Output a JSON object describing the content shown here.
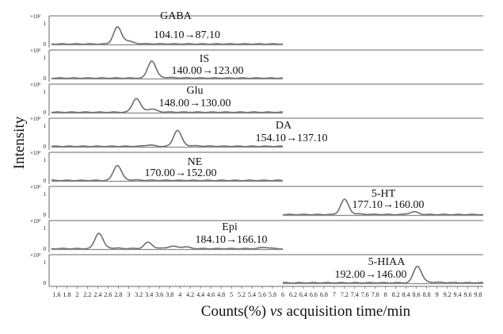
{
  "chart_data": {
    "type": "line",
    "ylabel": "Intensity",
    "xlabel_prefix": "Counts(%) ",
    "xlabel_italic": "vs",
    "xlabel_suffix": " acquisition time/min",
    "y_multiplier": "×10²",
    "y_tick_top": "1",
    "y_tick_bottom": "0",
    "xlim": [
      1.5,
      9.9
    ],
    "x_ticks": [
      "1.6",
      "1.8",
      "2",
      "2.2",
      "2.4",
      "2.6",
      "2.8",
      "3",
      "3.2",
      "3.4",
      "3.6",
      "3.8",
      "4",
      "4.2",
      "4.4",
      "4.6",
      "4.8",
      "5",
      "5.2",
      "5.4",
      "5.6",
      "5.8",
      "6",
      "6.2",
      "6.4",
      "6.6",
      "6.8",
      "7",
      "7.2",
      "7.4",
      "7.6",
      "7.8",
      "8",
      "8.2",
      "8.4",
      "8.6",
      "8.8",
      "9",
      "9.2",
      "9.4",
      "9.6",
      "9.8"
    ],
    "series": [
      {
        "name": "GABA",
        "transition": "104.10→87.10",
        "x_range": [
          1.5,
          6.0
        ],
        "peaks": [
          {
            "x": 2.78,
            "h": 0.75
          },
          {
            "x": 2.98,
            "h": 0.1
          }
        ]
      },
      {
        "name": "IS",
        "transition": "140.00→123.00",
        "x_range": [
          1.5,
          6.0
        ],
        "peaks": [
          {
            "x": 3.45,
            "h": 0.78
          }
        ]
      },
      {
        "name": "Glu",
        "transition": "148.00→130.00",
        "x_range": [
          1.5,
          6.0
        ],
        "peaks": [
          {
            "x": 3.15,
            "h": 0.62
          },
          {
            "x": 3.45,
            "h": 0.12
          }
        ]
      },
      {
        "name": "DA",
        "transition": "154.10→137.10",
        "x_range": [
          1.5,
          6.0
        ],
        "peaks": [
          {
            "x": 3.95,
            "h": 0.72
          },
          {
            "x": 3.4,
            "h": 0.06
          }
        ]
      },
      {
        "name": "NE",
        "transition": "170.00→152.00",
        "x_range": [
          1.5,
          6.0
        ],
        "peaks": [
          {
            "x": 2.78,
            "h": 0.68
          }
        ]
      },
      {
        "name": "5-HT",
        "transition": "177.10→160.00",
        "x_range": [
          6.0,
          9.9
        ],
        "peaks": [
          {
            "x": 7.2,
            "h": 0.68
          },
          {
            "x": 8.55,
            "h": 0.12
          }
        ]
      },
      {
        "name": "Epi",
        "transition": "184.10→166.10",
        "x_range": [
          1.5,
          6.0
        ],
        "peaks": [
          {
            "x": 2.42,
            "h": 0.7
          },
          {
            "x": 3.38,
            "h": 0.28
          },
          {
            "x": 3.85,
            "h": 0.1
          },
          {
            "x": 4.1,
            "h": 0.08
          },
          {
            "x": 5.65,
            "h": 0.06
          }
        ]
      },
      {
        "name": "5-HIAA",
        "transition": "192.00→146.00",
        "x_range": [
          6.0,
          9.9
        ],
        "peaks": [
          {
            "x": 8.62,
            "h": 0.75
          }
        ]
      }
    ]
  }
}
